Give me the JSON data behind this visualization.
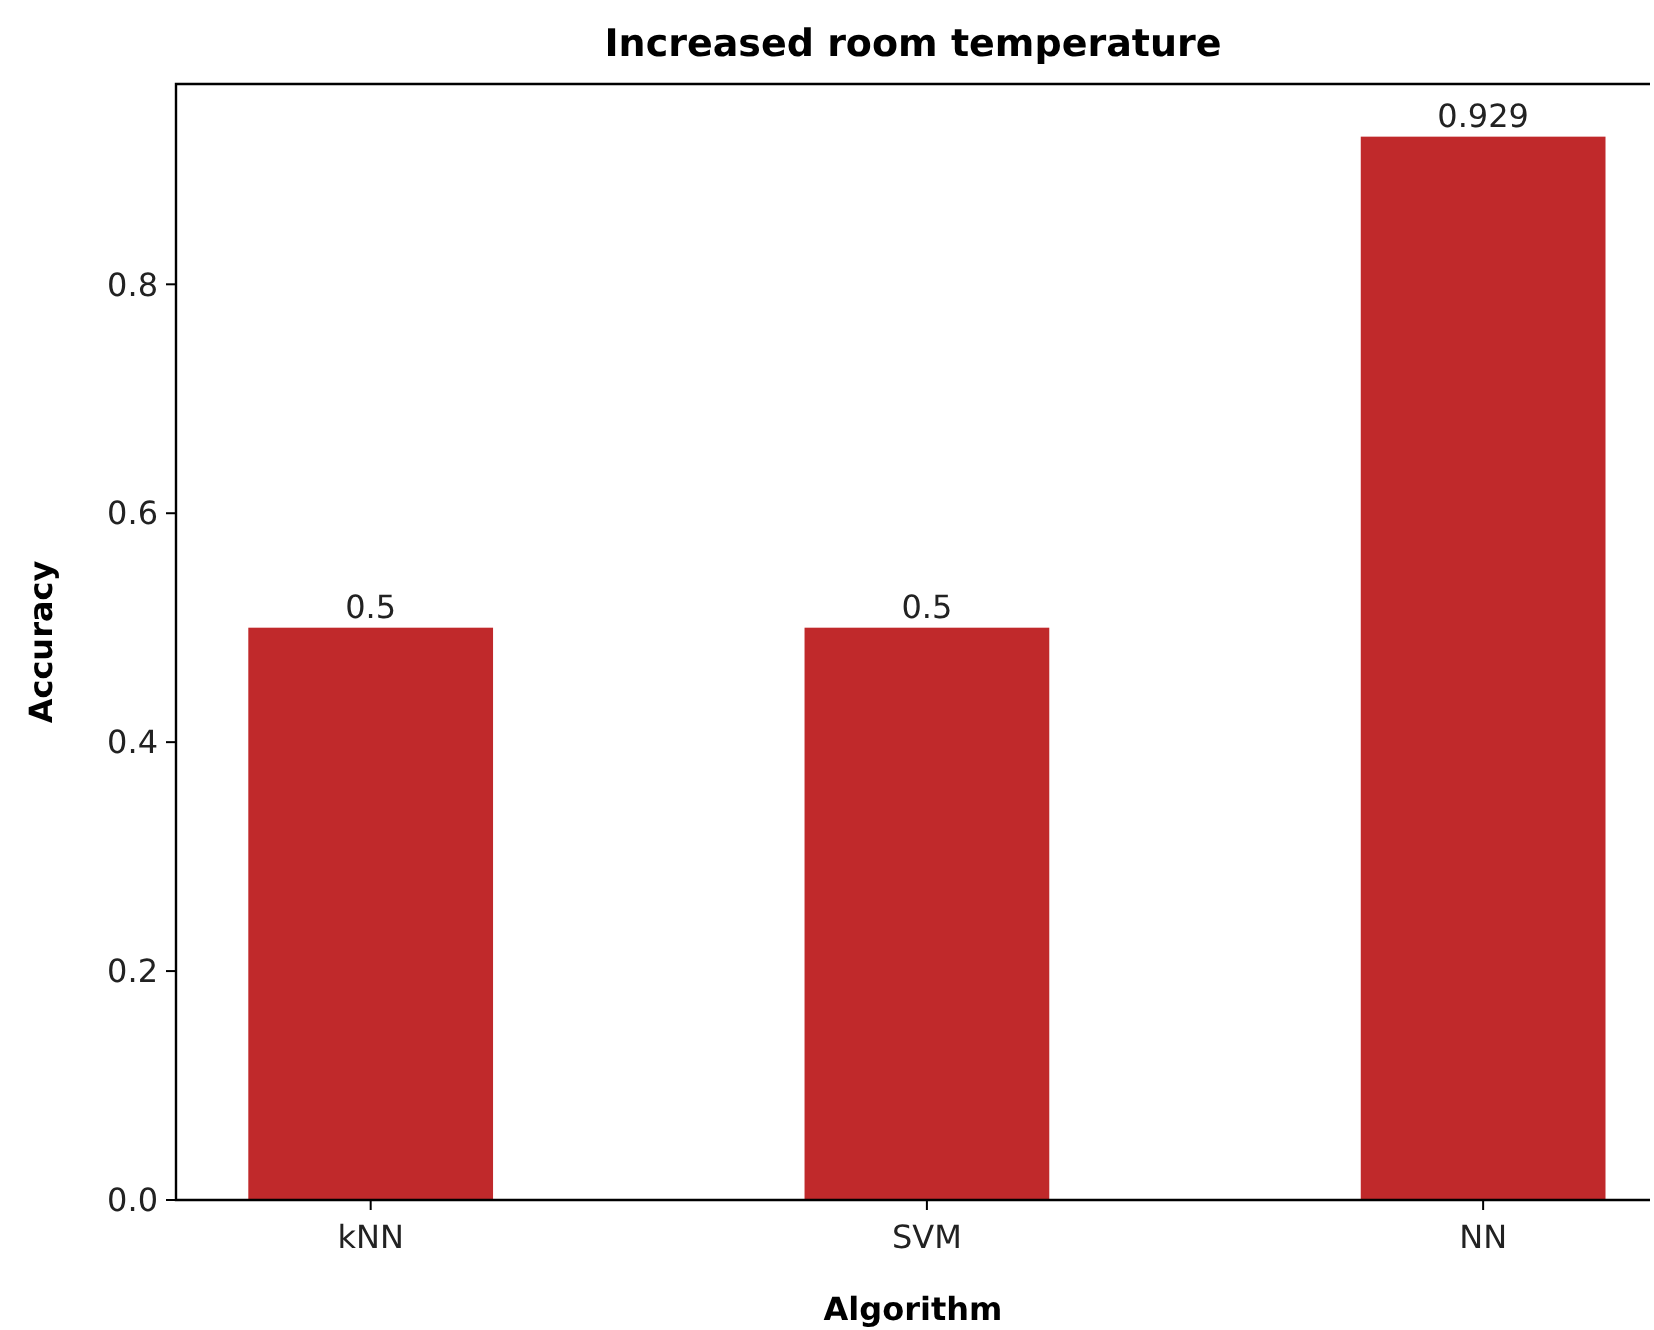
{
  "chart_data": {
    "type": "bar",
    "title": "Increased room temperature",
    "xlabel": "Algorithm",
    "ylabel": "Accuracy",
    "categories": [
      "kNN",
      "SVM",
      "NN"
    ],
    "values": [
      0.5,
      0.5,
      0.929
    ],
    "color": "#c0292b",
    "ylim": [
      0,
      0.975
    ],
    "yticks": [
      {
        "value": 0,
        "label": "0.0"
      },
      {
        "value": 0.2,
        "label": "0.2"
      },
      {
        "value": 0.4,
        "label": "0.4"
      },
      {
        "value": 0.6,
        "label": "0.6"
      },
      {
        "value": 0.8,
        "label": "0.8"
      }
    ],
    "data_labels": true,
    "grid": false
  }
}
